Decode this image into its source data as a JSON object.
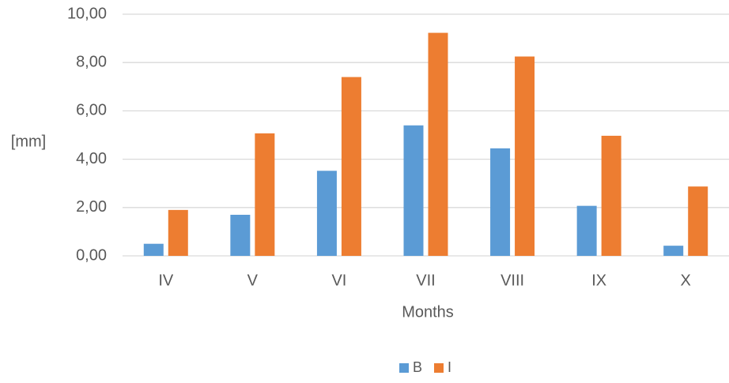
{
  "chart_data": {
    "type": "bar",
    "title": "",
    "xlabel": "Months",
    "ylabel": "[mm]",
    "categories": [
      "IV",
      "V",
      "VI",
      "VII",
      "VIII",
      "IX",
      "X"
    ],
    "series": [
      {
        "name": "B",
        "color": "#5B9BD5",
        "values": [
          0.5,
          1.7,
          3.52,
          5.4,
          4.45,
          2.07,
          0.42
        ]
      },
      {
        "name": "I",
        "color": "#ED7D31",
        "values": [
          1.9,
          5.07,
          7.4,
          9.23,
          8.25,
          4.97,
          2.87
        ]
      }
    ],
    "ylim": [
      0,
      10
    ],
    "yticks": [
      "0,00",
      "2,00",
      "4,00",
      "6,00",
      "8,00",
      "10,00"
    ],
    "grid": true,
    "legend_position": "bottom-center"
  }
}
